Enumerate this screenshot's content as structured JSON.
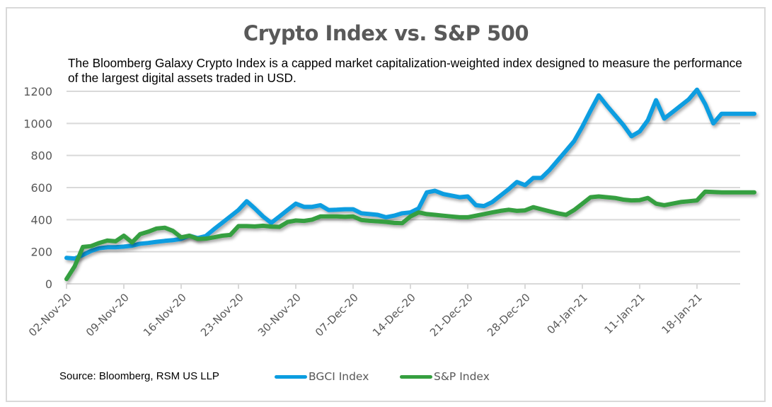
{
  "chart_data": {
    "type": "line",
    "title": "Crypto Index vs. S&P 500",
    "subtitle": "The Bloomberg Galaxy Crypto Index is a capped market capitalization-weighted index designed to measure the performance of the largest digital assets traded in USD.",
    "source": "Source: Bloomberg, RSM US LLP",
    "xlabel": "",
    "ylabel": "",
    "ylim": [
      0,
      1200
    ],
    "yticks": [
      0,
      200,
      400,
      600,
      800,
      1000,
      1200
    ],
    "grid": true,
    "legend_position": "bottom",
    "x_tick_labels": [
      "02-Nov-20",
      "09-Nov-20",
      "16-Nov-20",
      "23-Nov-20",
      "30-Nov-20",
      "07-Dec-20",
      "14-Dec-20",
      "21-Dec-20",
      "28-Dec-20",
      "04-Jan-21",
      "11-Jan-21",
      "18-Jan-21"
    ],
    "x_days_range": [
      0,
      84
    ],
    "series": [
      {
        "name": "BGCI Index",
        "color": "#0b9de0",
        "x_days": [
          0,
          1,
          2,
          3,
          4,
          5,
          6,
          7,
          8,
          9,
          10,
          11,
          12,
          13,
          14,
          15,
          16,
          17,
          18,
          19,
          20,
          21,
          22,
          23,
          24,
          25,
          26,
          27,
          28,
          29,
          30,
          31,
          32,
          33,
          34,
          35,
          36,
          37,
          38,
          39,
          40,
          41,
          42,
          43,
          44,
          45,
          46,
          47,
          48,
          49,
          50,
          51,
          52,
          53,
          54,
          55,
          56,
          57,
          58,
          59,
          60,
          61,
          62,
          63,
          64,
          65,
          66,
          67,
          68,
          69,
          70,
          71,
          72,
          73,
          74,
          75,
          76,
          77,
          78,
          79,
          80,
          81,
          82,
          83,
          84
        ],
        "values": [
          162,
          158,
          180,
          205,
          222,
          228,
          228,
          232,
          238,
          250,
          255,
          262,
          268,
          272,
          280,
          300,
          285,
          298,
          340,
          380,
          420,
          460,
          515,
          470,
          420,
          380,
          420,
          460,
          500,
          480,
          480,
          490,
          460,
          462,
          465,
          465,
          440,
          435,
          430,
          415,
          425,
          440,
          445,
          470,
          570,
          580,
          560,
          550,
          540,
          545,
          490,
          485,
          510,
          550,
          590,
          635,
          615,
          660,
          660,
          710,
          770,
          830,
          890,
          980,
          1080,
          1175,
          1110,
          1050,
          990,
          920,
          950,
          1020,
          1145,
          1030,
          1070,
          1110,
          1150,
          1210,
          1120,
          1000,
          1060,
          1060,
          1060,
          1060,
          1060
        ]
      },
      {
        "name": "S&P Index",
        "color": "#359f3f",
        "x_days": [
          0,
          1,
          2,
          3,
          4,
          5,
          6,
          7,
          8,
          9,
          10,
          11,
          12,
          13,
          14,
          15,
          16,
          17,
          18,
          19,
          20,
          21,
          22,
          23,
          24,
          25,
          26,
          27,
          28,
          29,
          30,
          31,
          32,
          33,
          34,
          35,
          36,
          37,
          38,
          39,
          40,
          41,
          42,
          43,
          44,
          45,
          46,
          47,
          48,
          49,
          50,
          51,
          52,
          53,
          54,
          55,
          56,
          57,
          58,
          59,
          60,
          61,
          62,
          63,
          64,
          65,
          66,
          67,
          68,
          69,
          70,
          71,
          72,
          73,
          74,
          75,
          76,
          77,
          78,
          79,
          80,
          81,
          82,
          83,
          84
        ],
        "values": [
          30,
          110,
          230,
          235,
          255,
          270,
          265,
          300,
          258,
          310,
          325,
          345,
          350,
          330,
          290,
          300,
          280,
          282,
          290,
          300,
          305,
          360,
          360,
          358,
          362,
          357,
          355,
          385,
          395,
          392,
          400,
          420,
          420,
          420,
          418,
          420,
          398,
          393,
          390,
          386,
          380,
          378,
          420,
          445,
          435,
          430,
          425,
          420,
          415,
          415,
          425,
          435,
          445,
          455,
          462,
          455,
          458,
          478,
          465,
          452,
          440,
          430,
          460,
          500,
          540,
          545,
          540,
          535,
          525,
          520,
          522,
          535,
          500,
          490,
          500,
          510,
          515,
          520,
          575,
          572,
          570,
          570,
          570,
          570,
          570
        ]
      }
    ]
  }
}
